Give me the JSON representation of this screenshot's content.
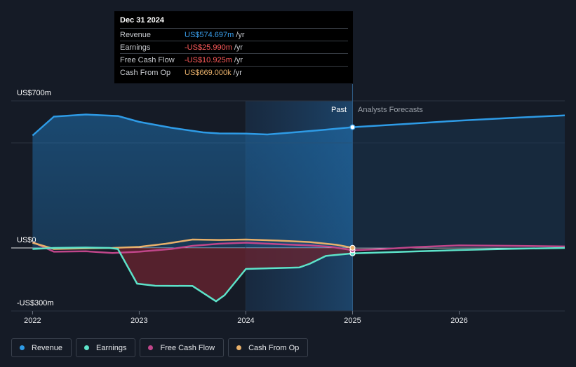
{
  "chart_data": {
    "type": "line",
    "x_unit": "year",
    "y_axis_labels": [
      "US$700m",
      "US$0",
      "-US$300m"
    ],
    "ylim": [
      -300,
      700
    ],
    "xlim": [
      2021.8,
      2026.99
    ],
    "x_ticks": [
      "2022",
      "2023",
      "2024",
      "2025",
      "2026"
    ],
    "x_tick_values": [
      2022,
      2023,
      2024,
      2025,
      2026
    ],
    "past_label": "Past",
    "forecast_label": "Analysts Forecasts",
    "past_end": 2025.0,
    "highlight_start": 2024.0,
    "series": [
      {
        "name": "Revenue",
        "color": "#2e9be6",
        "points": [
          [
            2022.0,
            535
          ],
          [
            2022.2,
            625
          ],
          [
            2022.5,
            635
          ],
          [
            2022.8,
            628
          ],
          [
            2023.0,
            600
          ],
          [
            2023.3,
            572
          ],
          [
            2023.6,
            550
          ],
          [
            2023.75,
            545
          ],
          [
            2024.0,
            544
          ],
          [
            2024.2,
            540
          ],
          [
            2024.5,
            552
          ],
          [
            2024.75,
            563
          ],
          [
            2025.0,
            574.7
          ],
          [
            2025.5,
            590
          ],
          [
            2026.0,
            606
          ],
          [
            2026.5,
            619
          ],
          [
            2026.99,
            631
          ]
        ]
      },
      {
        "name": "Earnings",
        "color": "#5de3c9",
        "points": [
          [
            2022.0,
            -5
          ],
          [
            2022.2,
            0
          ],
          [
            2022.5,
            2
          ],
          [
            2022.72,
            0
          ],
          [
            2022.8,
            -5
          ],
          [
            2022.98,
            -170
          ],
          [
            2023.15,
            -180
          ],
          [
            2023.5,
            -181
          ],
          [
            2023.72,
            -254
          ],
          [
            2023.8,
            -225
          ],
          [
            2024.0,
            -100
          ],
          [
            2024.5,
            -93
          ],
          [
            2024.6,
            -75
          ],
          [
            2024.75,
            -38
          ],
          [
            2025.0,
            -26
          ],
          [
            2025.5,
            -18
          ],
          [
            2026.0,
            -10
          ],
          [
            2026.5,
            -4
          ],
          [
            2026.99,
            0
          ]
        ]
      },
      {
        "name": "Free Cash Flow",
        "color": "#c0468a",
        "points": [
          [
            2022.0,
            28
          ],
          [
            2022.2,
            -18
          ],
          [
            2022.5,
            -16
          ],
          [
            2022.75,
            -24
          ],
          [
            2023.0,
            -18
          ],
          [
            2023.3,
            -5
          ],
          [
            2023.5,
            10
          ],
          [
            2023.75,
            20
          ],
          [
            2024.0,
            25
          ],
          [
            2024.3,
            18
          ],
          [
            2024.6,
            12
          ],
          [
            2024.8,
            5
          ],
          [
            2025.0,
            -11
          ],
          [
            2025.3,
            -5
          ],
          [
            2025.6,
            4
          ],
          [
            2026.0,
            12
          ],
          [
            2026.5,
            10
          ],
          [
            2026.99,
            7
          ]
        ]
      },
      {
        "name": "Cash From Op",
        "color": "#e8b06a",
        "points": [
          [
            2022.0,
            25
          ],
          [
            2022.2,
            -5
          ],
          [
            2022.5,
            -2
          ],
          [
            2022.75,
            0
          ],
          [
            2023.0,
            5
          ],
          [
            2023.25,
            20
          ],
          [
            2023.5,
            40
          ],
          [
            2023.75,
            38
          ],
          [
            2024.0,
            40
          ],
          [
            2024.3,
            35
          ],
          [
            2024.6,
            28
          ],
          [
            2024.85,
            15
          ],
          [
            2025.0,
            0.669
          ]
        ]
      }
    ]
  },
  "tooltip": {
    "date": "Dec 31 2024",
    "rows": [
      {
        "name": "Revenue",
        "value": "US$574.697m",
        "unit": "/yr",
        "color": "#3aa0ee"
      },
      {
        "name": "Earnings",
        "value": "-US$25.990m",
        "unit": "/yr",
        "color": "#ff5b5b"
      },
      {
        "name": "Free Cash Flow",
        "value": "-US$10.925m",
        "unit": "/yr",
        "color": "#ff5b5b"
      },
      {
        "name": "Cash From Op",
        "value": "US$669.000k",
        "unit": "/yr",
        "color": "#e8b06a"
      }
    ]
  },
  "legend": [
    {
      "label": "Revenue",
      "color": "#2e9be6"
    },
    {
      "label": "Earnings",
      "color": "#5de3c9"
    },
    {
      "label": "Free Cash Flow",
      "color": "#c0468a"
    },
    {
      "label": "Cash From Op",
      "color": "#e8b06a"
    }
  ]
}
